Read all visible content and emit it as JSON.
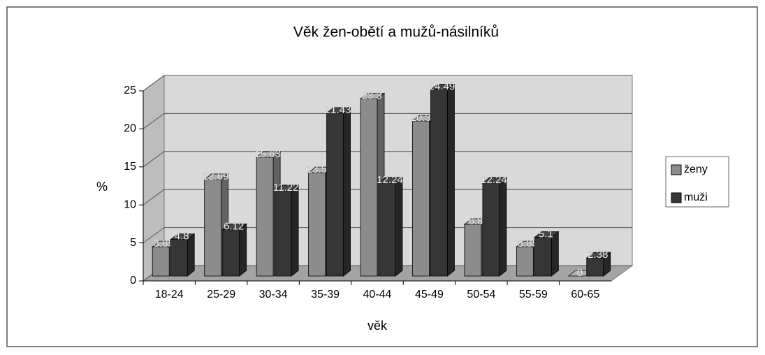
{
  "chart_data": {
    "type": "bar3d",
    "title": "Věk žen-obětí a mužů-násilníků",
    "x_label": "věk",
    "y_label": "%",
    "categories": [
      "18-24",
      "25-29",
      "30-34",
      "35-39",
      "40-44",
      "45-49",
      "50-54",
      "55-59",
      "60-65"
    ],
    "series": [
      {
        "name": "ženy",
        "color": "#8c8c8c",
        "values": [
          3.85,
          12.69,
          15.63,
          13.59,
          23.3,
          20.39,
          6.8,
          3.85,
          0
        ]
      },
      {
        "name": "muži",
        "color": "#363636",
        "values": [
          4.8,
          6.12,
          11.22,
          21.43,
          12.24,
          24.49,
          12.24,
          5.1,
          2.38
        ]
      }
    ],
    "ylim": [
      0,
      25
    ],
    "yticks": [
      0,
      5,
      10,
      15,
      20,
      25
    ],
    "grid": true,
    "legend": "right"
  }
}
